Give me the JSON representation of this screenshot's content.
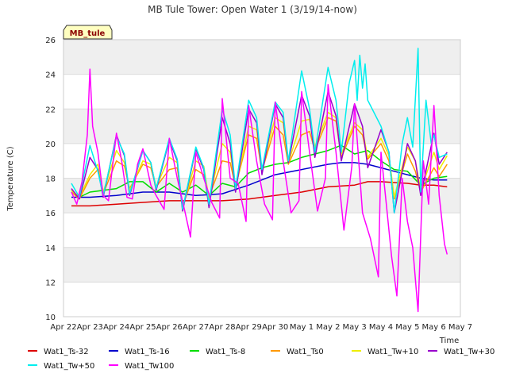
{
  "chart_data": {
    "type": "line",
    "title": "MB Tule Tower: Open Water 1 (3/19/14-now)",
    "xlabel": "Time",
    "ylabel": "Temperature (C)",
    "station_tag": "MB_tule",
    "x_ticks": [
      "Apr 22",
      "Apr 23",
      "Apr 24",
      "Apr 25",
      "Apr 26",
      "Apr 27",
      "Apr 28",
      "Apr 29",
      "Apr 30",
      "May 1",
      "May 2",
      "May 3",
      "May 4",
      "May 5",
      "May 6",
      "May 7"
    ],
    "xlim": [
      0,
      15
    ],
    "ylim": [
      10,
      26
    ],
    "y_ticks": [
      10,
      12,
      14,
      16,
      18,
      20,
      22,
      24,
      26
    ],
    "x_unit": "days since Apr 22",
    "series": [
      {
        "name": "Wat1_Ts-32",
        "color": "#dd0000",
        "x": [
          0.3,
          1,
          2,
          3,
          4,
          5,
          6,
          7,
          8,
          9,
          10,
          11,
          11.5,
          12,
          13,
          13.5,
          14,
          14.5
        ],
        "y": [
          16.4,
          16.4,
          16.5,
          16.6,
          16.7,
          16.7,
          16.7,
          16.8,
          17.0,
          17.2,
          17.5,
          17.6,
          17.8,
          17.8,
          17.7,
          17.6,
          17.6,
          17.5
        ]
      },
      {
        "name": "Wat1_Ts-16",
        "color": "#0000cc",
        "x": [
          0.3,
          1,
          2,
          3,
          4,
          5,
          6,
          7,
          8,
          9,
          10,
          10.5,
          11,
          11.5,
          12,
          12.5,
          13,
          13.5,
          14,
          14.5
        ],
        "y": [
          16.9,
          16.9,
          17.0,
          17.2,
          17.2,
          17.0,
          17.1,
          17.6,
          18.2,
          18.5,
          18.8,
          18.9,
          18.9,
          18.8,
          18.6,
          18.4,
          18.2,
          18.0,
          17.9,
          17.9
        ]
      },
      {
        "name": "Wat1_Ts-8",
        "color": "#00dd00",
        "x": [
          0.3,
          0.6,
          1,
          1.5,
          2,
          2.5,
          3,
          3.5,
          4,
          4.5,
          5,
          5.5,
          6,
          6.5,
          7,
          7.5,
          8,
          8.5,
          9,
          9.5,
          10,
          10.5,
          11,
          11.5,
          12,
          12.5,
          13,
          13.5,
          14,
          14.5
        ],
        "y": [
          17.3,
          16.9,
          17.2,
          17.3,
          17.4,
          17.8,
          17.8,
          17.2,
          17.7,
          17.2,
          17.6,
          17.0,
          17.7,
          17.5,
          18.3,
          18.6,
          18.8,
          18.9,
          19.2,
          19.4,
          19.6,
          19.9,
          19.4,
          19.6,
          19.0,
          18.5,
          18.4,
          17.6,
          18.0,
          18.1
        ]
      },
      {
        "name": "Wat1_Ts0",
        "color": "#ff9900",
        "x": [
          0.3,
          0.6,
          1,
          1.3,
          1.5,
          2,
          2.3,
          2.5,
          3,
          3.3,
          3.5,
          4,
          4.3,
          4.5,
          5,
          5.3,
          5.5,
          6,
          6.3,
          6.5,
          7,
          7.3,
          7.5,
          8,
          8.3,
          8.5,
          9,
          9.3,
          9.5,
          10,
          10.3,
          10.5,
          11,
          11.3,
          11.5,
          12,
          12.3,
          12.5,
          13,
          13.3,
          13.5,
          14,
          14.2,
          14.5
        ],
        "y": [
          17.2,
          16.8,
          18.0,
          18.5,
          17.1,
          19.0,
          18.7,
          17.4,
          18.8,
          18.6,
          17.5,
          18.5,
          18.6,
          16.4,
          18.5,
          18.2,
          16.9,
          19.0,
          18.9,
          17.5,
          20.5,
          20.3,
          18.4,
          21.0,
          20.5,
          18.8,
          20.5,
          20.7,
          19.6,
          21.5,
          21.3,
          19.2,
          21.0,
          20.5,
          19.1,
          20.0,
          19.0,
          16.8,
          19.4,
          18.4,
          17.2,
          18.6,
          18.1,
          18.8
        ]
      },
      {
        "name": "Wat1_Tw+10",
        "color": "#eeee00",
        "x": [
          0.3,
          0.6,
          1,
          1.3,
          1.5,
          2,
          2.3,
          2.5,
          3,
          3.3,
          3.5,
          4,
          4.3,
          4.5,
          5,
          5.3,
          5.5,
          6,
          6.3,
          6.5,
          7,
          7.3,
          7.5,
          8,
          8.3,
          8.5,
          9,
          9.3,
          9.5,
          10,
          10.3,
          10.5,
          11,
          11.3,
          11.5,
          12,
          12.3,
          12.5,
          13,
          13.3,
          13.5,
          14,
          14.2,
          14.5
        ],
        "y": [
          17.3,
          16.9,
          18.2,
          18.8,
          17.2,
          19.6,
          18.9,
          17.3,
          19.0,
          18.8,
          17.5,
          19.2,
          18.9,
          16.3,
          19.0,
          18.7,
          16.8,
          20.0,
          19.5,
          17.4,
          21.0,
          20.8,
          18.5,
          21.5,
          21.2,
          18.9,
          21.3,
          21.4,
          19.8,
          21.8,
          21.5,
          19.4,
          21.2,
          20.8,
          19.2,
          20.3,
          19.3,
          16.9,
          19.8,
          19.0,
          17.3,
          19.5,
          18.5,
          19.3
        ]
      },
      {
        "name": "Wat1_Tw+30",
        "color": "#9900cc",
        "x": [
          0.3,
          0.6,
          1,
          1.3,
          1.5,
          2,
          2.3,
          2.5,
          3,
          3.3,
          3.5,
          4,
          4.3,
          4.5,
          5,
          5.3,
          5.5,
          6,
          6.3,
          6.5,
          7,
          7.3,
          7.5,
          8,
          8.3,
          8.5,
          9,
          9.3,
          9.5,
          10,
          10.3,
          10.5,
          11,
          11.3,
          11.5,
          12,
          12.3,
          12.5,
          13,
          13.3,
          13.5,
          14,
          14.2,
          14.5
        ],
        "y": [
          17.4,
          16.8,
          19.2,
          18.5,
          16.9,
          20.5,
          19.3,
          17.0,
          19.6,
          18.9,
          17.3,
          20.2,
          19.0,
          16.1,
          19.7,
          18.5,
          16.3,
          21.5,
          20.0,
          17.2,
          22.0,
          21.2,
          18.2,
          22.3,
          21.5,
          18.9,
          22.8,
          21.6,
          19.2,
          23.0,
          21.6,
          19.0,
          22.3,
          21.0,
          18.6,
          20.8,
          19.5,
          16.0,
          20.0,
          19.0,
          17.0,
          20.6,
          18.8,
          19.5
        ]
      },
      {
        "name": "Wat1_Tw+50",
        "color": "#00eeee",
        "x": [
          0.3,
          0.6,
          1,
          1.3,
          1.5,
          2,
          2.3,
          2.5,
          3,
          3.3,
          3.5,
          4,
          4.3,
          4.5,
          5,
          5.3,
          5.5,
          6,
          6.3,
          6.5,
          7,
          7.3,
          7.5,
          8,
          8.3,
          8.5,
          9,
          9.3,
          9.5,
          10,
          10.3,
          10.5,
          10.8,
          11,
          11.1,
          11.2,
          11.3,
          11.4,
          11.5,
          12,
          12.3,
          12.5,
          12.8,
          13,
          13.2,
          13.4,
          13.5,
          13.7,
          13.9,
          14,
          14.2,
          14.5
        ],
        "y": [
          17.7,
          16.9,
          19.9,
          18.4,
          17.0,
          20.4,
          19.4,
          17.1,
          19.6,
          18.9,
          17.4,
          20.3,
          19.1,
          16.2,
          19.8,
          18.6,
          16.5,
          22.0,
          20.5,
          17.4,
          22.5,
          21.5,
          18.5,
          22.4,
          21.8,
          19.0,
          24.2,
          22.0,
          19.5,
          24.4,
          22.5,
          19.5,
          23.5,
          24.8,
          22.5,
          25.1,
          23.2,
          24.6,
          22.5,
          21.0,
          19.5,
          16.0,
          20.0,
          21.5,
          19.8,
          25.5,
          17.2,
          22.5,
          20.0,
          20.5,
          19.2,
          19.4
        ]
      },
      {
        "name": "Wat1_Tw100",
        "color": "#ff00ff",
        "x": [
          0.3,
          0.5,
          0.7,
          0.9,
          1.0,
          1.1,
          1.3,
          1.5,
          1.7,
          2.0,
          2.2,
          2.4,
          2.6,
          2.8,
          3.0,
          3.3,
          3.5,
          3.8,
          4.0,
          4.3,
          4.6,
          4.8,
          5.0,
          5.3,
          5.6,
          5.9,
          6.0,
          6.3,
          6.6,
          6.9,
          7.0,
          7.3,
          7.6,
          7.9,
          8.0,
          8.3,
          8.6,
          8.9,
          9.0,
          9.3,
          9.6,
          9.9,
          10.0,
          10.3,
          10.6,
          10.9,
          11.0,
          11.3,
          11.6,
          11.9,
          12.0,
          12.2,
          12.4,
          12.6,
          12.8,
          13.0,
          13.2,
          13.4,
          13.6,
          13.8,
          14.0,
          14.2,
          14.4,
          14.5
        ],
        "y": [
          17.2,
          16.5,
          17.8,
          20.5,
          24.3,
          21.0,
          19.5,
          17.0,
          16.7,
          20.6,
          19.0,
          16.9,
          16.8,
          18.8,
          19.7,
          17.6,
          17.0,
          16.2,
          20.3,
          18.0,
          16.0,
          14.6,
          19.5,
          18.0,
          16.6,
          15.7,
          22.6,
          18.0,
          17.7,
          15.5,
          22.2,
          19.0,
          16.5,
          15.6,
          22.4,
          19.0,
          16.0,
          16.7,
          23.0,
          19.5,
          16.1,
          18.0,
          23.4,
          19.5,
          15.0,
          18.7,
          22.3,
          16.0,
          14.5,
          12.3,
          19.5,
          16.5,
          13.5,
          11.2,
          18.0,
          15.5,
          14.0,
          10.3,
          19.0,
          16.5,
          22.2,
          17.0,
          14.2,
          13.6
        ]
      }
    ]
  }
}
